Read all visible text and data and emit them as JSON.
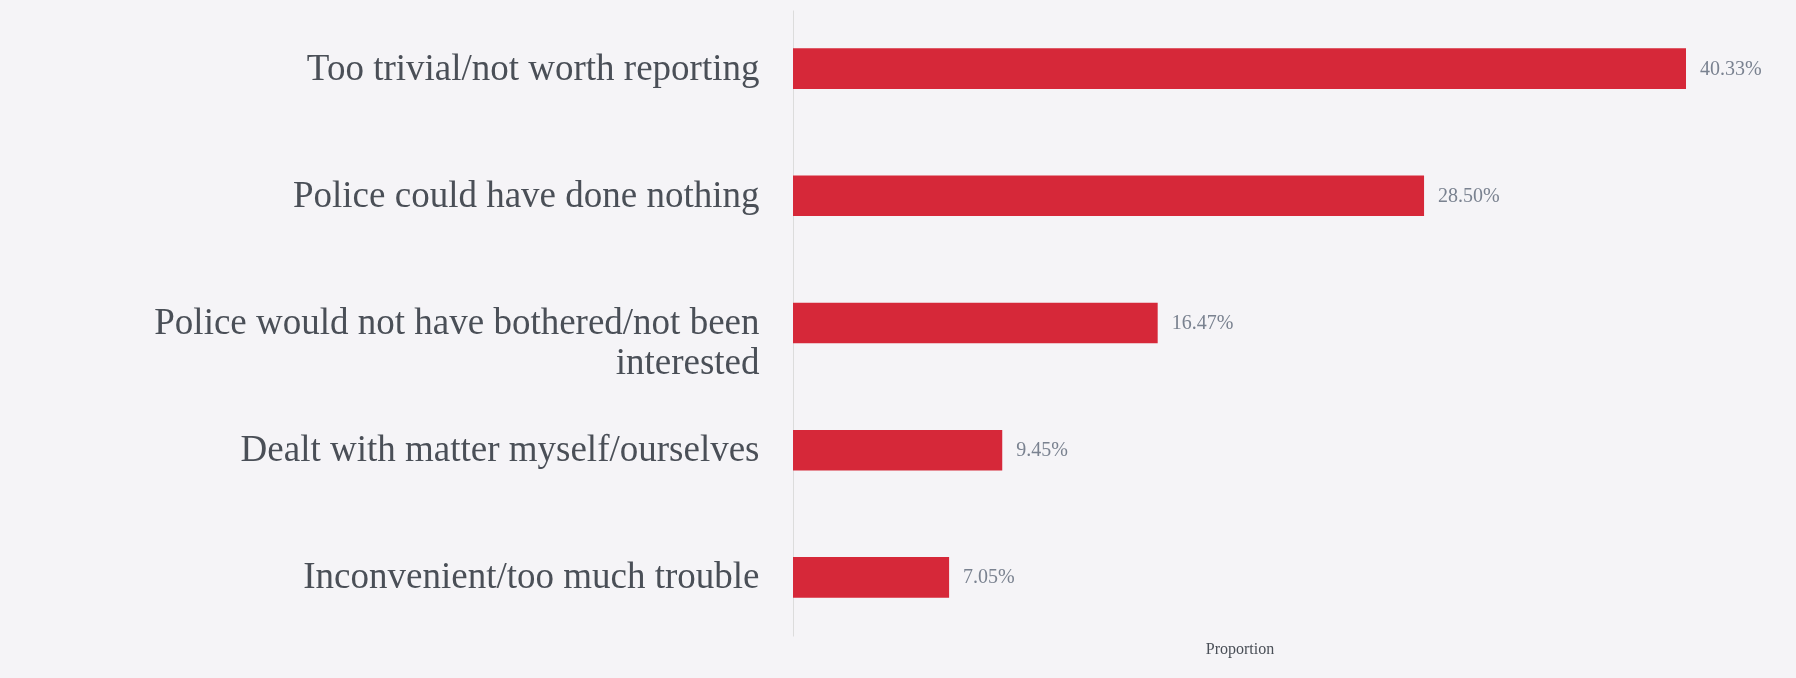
{
  "chart_data": {
    "type": "bar",
    "orientation": "horizontal",
    "xlabel": "Proportion",
    "categories": [
      "Too trivial/not worth reporting",
      "Police could have done nothing",
      "Police would not have bothered/not been interested",
      "Dealt with matter myself/ourselves",
      "Inconvenient/too much trouble"
    ],
    "values": [
      40.33,
      28.5,
      16.47,
      9.45,
      7.05
    ],
    "value_labels": [
      "40.33%",
      "28.50%",
      "16.47%",
      "9.45%",
      "7.05%"
    ],
    "color": "#d62839",
    "grid": false
  }
}
